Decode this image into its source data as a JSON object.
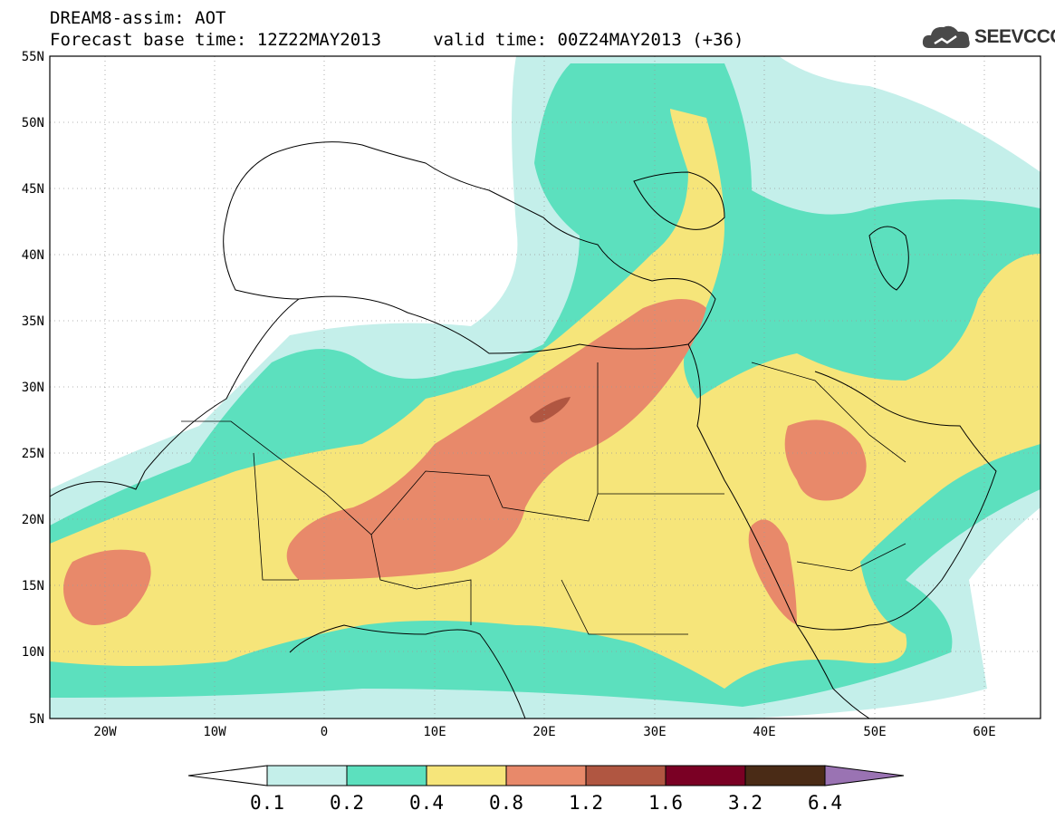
{
  "header": {
    "title_line1": "DREAM8-assim: AOT",
    "title_line2": "Forecast base time: 12Z22MAY2013     valid time: 00Z24MAY2013 (+36)",
    "logo_text": "SEEVCCC"
  },
  "map": {
    "lat_labels": [
      "55N",
      "50N",
      "45N",
      "40N",
      "35N",
      "30N",
      "25N",
      "20N",
      "15N",
      "10N",
      "5N"
    ],
    "lon_labels": [
      "20W",
      "10W",
      "0",
      "10E",
      "20E",
      "30E",
      "40E",
      "50E",
      "60E"
    ],
    "colors": {
      "c01": "#c4efea",
      "c02": "#5ce0be",
      "c04": "#f6e57a",
      "c08": "#e8896a",
      "c12": "#b05641",
      "c16": "#7a0024",
      "c32": "#4a2b16",
      "c64": "#9a73b3"
    }
  },
  "legend": {
    "labels": [
      "0.1",
      "0.2",
      "0.4",
      "0.8",
      "1.2",
      "1.6",
      "3.2",
      "6.4"
    ],
    "colors": [
      "#ffffff",
      "#c4efea",
      "#5ce0be",
      "#f6e57a",
      "#e8896a",
      "#b05641",
      "#7a0024",
      "#4a2b16",
      "#9a73b3"
    ]
  }
}
